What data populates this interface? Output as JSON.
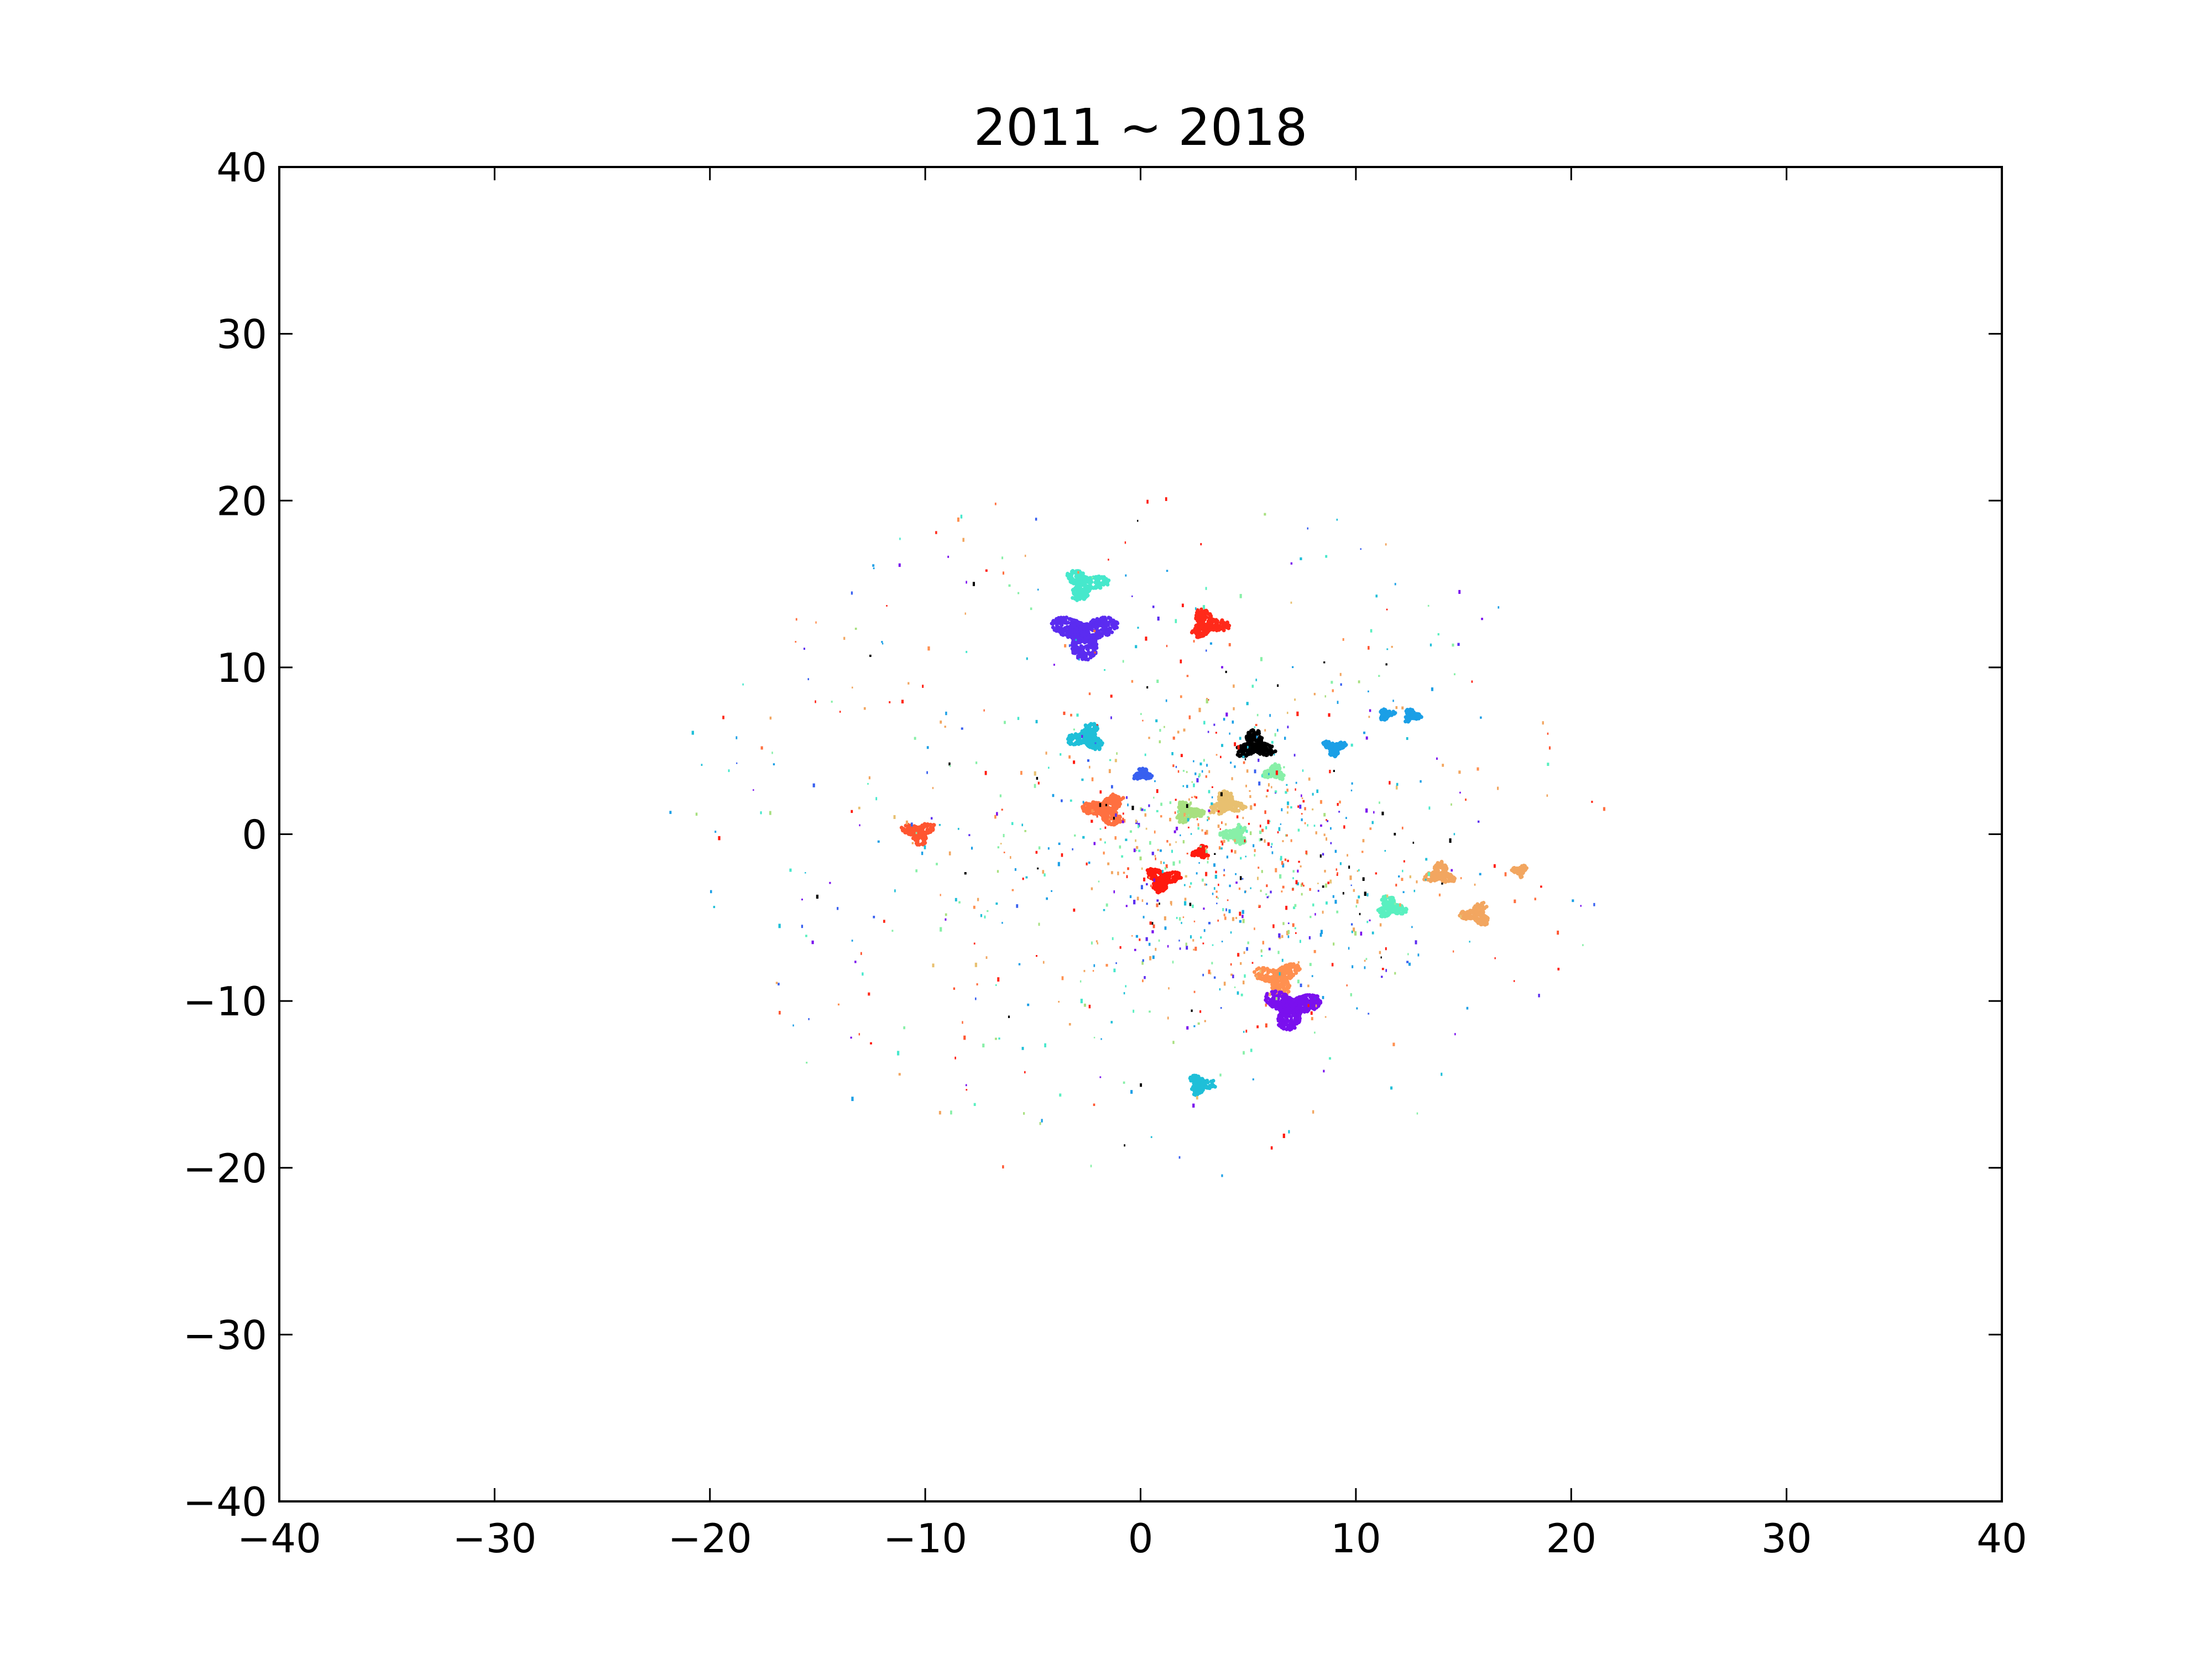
{
  "chart_data": {
    "type": "scatter",
    "title": "2011 ~ 2018",
    "xlabel": "",
    "ylabel": "",
    "xlim": [
      -40,
      40
    ],
    "ylim": [
      -40,
      40
    ],
    "xticks": [
      -40,
      -30,
      -20,
      -10,
      0,
      10,
      20,
      30,
      40
    ],
    "yticks": [
      -40,
      -30,
      -20,
      -10,
      0,
      10,
      20,
      30,
      40
    ],
    "tick_labels_x": [
      "−40",
      "−30",
      "−20",
      "−10",
      "0",
      "10",
      "20",
      "30",
      "40"
    ],
    "tick_labels_y": [
      "−40",
      "−30",
      "−20",
      "−10",
      "0",
      "10",
      "20",
      "30",
      "40"
    ],
    "grid": false,
    "legend": "none",
    "clusters": [
      {
        "color": "#5b2cf0",
        "cx": -2.6,
        "cy": 12.0,
        "r": 1.55
      },
      {
        "color": "#46e8cc",
        "cx": -2.6,
        "cy": 15.0,
        "r": 1.05
      },
      {
        "color": "#ff2a1a",
        "cx": 3.1,
        "cy": 12.6,
        "r": 0.95
      },
      {
        "color": "#000000",
        "cx": 5.3,
        "cy": 5.3,
        "r": 0.95
      },
      {
        "color": "#1fbfd8",
        "cx": -2.5,
        "cy": 5.8,
        "r": 0.9
      },
      {
        "color": "#ff7040",
        "cx": -1.6,
        "cy": 1.5,
        "r": 1.05
      },
      {
        "color": "#ff5530",
        "cx": -10.3,
        "cy": 0.1,
        "r": 0.8
      },
      {
        "color": "#ff1a0e",
        "cx": 1.0,
        "cy": -2.7,
        "r": 0.85
      },
      {
        "color": "#a8e080",
        "cx": 2.2,
        "cy": 1.3,
        "r": 0.7
      },
      {
        "color": "#e8c070",
        "cx": 4.0,
        "cy": 1.8,
        "r": 0.85
      },
      {
        "color": "#88f0a8",
        "cx": 6.2,
        "cy": 3.7,
        "r": 0.55
      },
      {
        "color": "#88f0a8",
        "cx": 4.4,
        "cy": 0.0,
        "r": 0.65
      },
      {
        "color": "#ff9050",
        "cx": 6.4,
        "cy": -8.6,
        "r": 1.1
      },
      {
        "color": "#7a10ee",
        "cx": 7.0,
        "cy": -10.4,
        "r": 1.35
      },
      {
        "color": "#1fbfd8",
        "cx": 2.8,
        "cy": -15.0,
        "r": 0.7
      },
      {
        "color": "#5af0c0",
        "cx": 11.6,
        "cy": -4.4,
        "r": 0.75
      },
      {
        "color": "#f2a660",
        "cx": 13.9,
        "cy": -2.4,
        "r": 0.75
      },
      {
        "color": "#f2a660",
        "cx": 15.6,
        "cy": -4.8,
        "r": 0.75
      },
      {
        "color": "#f2a660",
        "cx": 17.6,
        "cy": -2.2,
        "r": 0.4
      },
      {
        "color": "#1b9fe6",
        "cx": 9.0,
        "cy": 5.2,
        "r": 0.55
      },
      {
        "color": "#1b9fe6",
        "cx": 11.4,
        "cy": 7.2,
        "r": 0.4
      },
      {
        "color": "#1b9fe6",
        "cx": 12.6,
        "cy": 7.1,
        "r": 0.45
      },
      {
        "color": "#3860f0",
        "cx": 0.1,
        "cy": 3.6,
        "r": 0.45
      },
      {
        "color": "#ff1a0e",
        "cx": 2.8,
        "cy": -1.1,
        "r": 0.45
      }
    ]
  }
}
